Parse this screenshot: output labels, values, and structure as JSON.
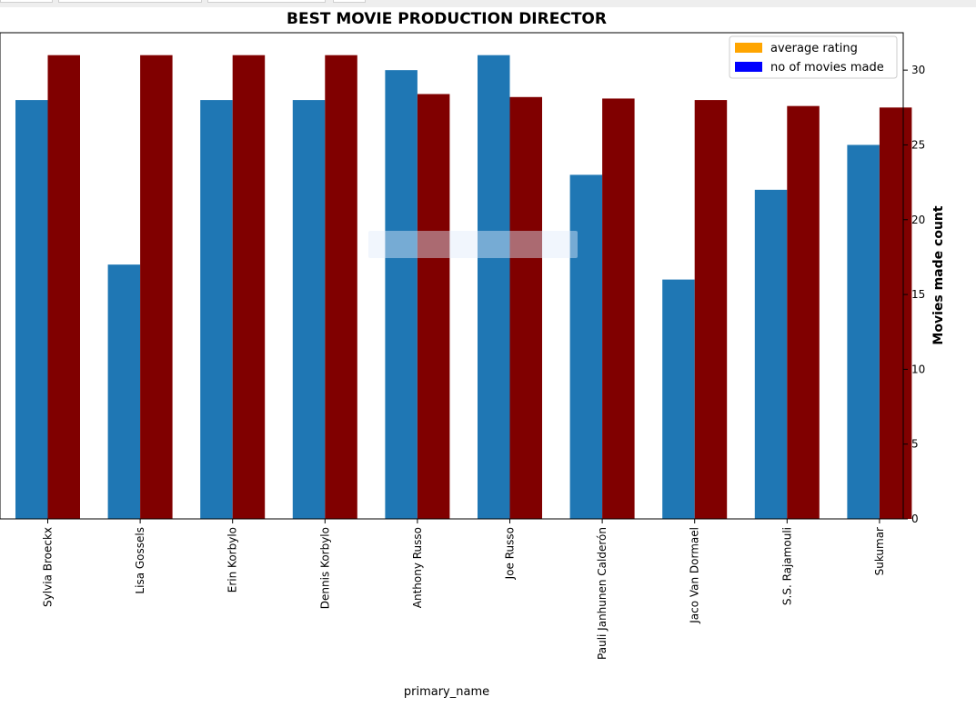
{
  "chart_data": {
    "type": "bar",
    "title": "BEST MOVIE PRODUCTION DIRECTOR",
    "xlabel": "primary_name",
    "ylabel": "Movies made count",
    "categories": [
      "Sylvia Broeckx",
      "Lisa Gossels",
      "Erin Korbylo",
      "Dennis Korbylo",
      "Anthony Russo",
      "Joe Russo",
      "Pauli Janhunen Calderón",
      "Jaco Van Dormael",
      "S.S. Rajamouli",
      "Sukumar"
    ],
    "series": [
      {
        "values": [
          28,
          17,
          28,
          28,
          30,
          31,
          23,
          16,
          22,
          25
        ],
        "color": "#1f77b4"
      },
      {
        "values": [
          31,
          31,
          31,
          31,
          28.4,
          28.2,
          28.1,
          28.0,
          27.6,
          27.5
        ],
        "color": "#800000"
      }
    ],
    "ylim": [
      0,
      32.5
    ],
    "yticks": [
      "0",
      "5",
      "10",
      "15",
      "20",
      "25",
      "30"
    ],
    "y_axis_side": "right",
    "legend": {
      "position": "top-right",
      "entries": [
        {
          "label": "average rating",
          "color": "#ffa500"
        },
        {
          "label": "no of movies made",
          "color": "#0000ff"
        }
      ]
    },
    "grid": false
  }
}
